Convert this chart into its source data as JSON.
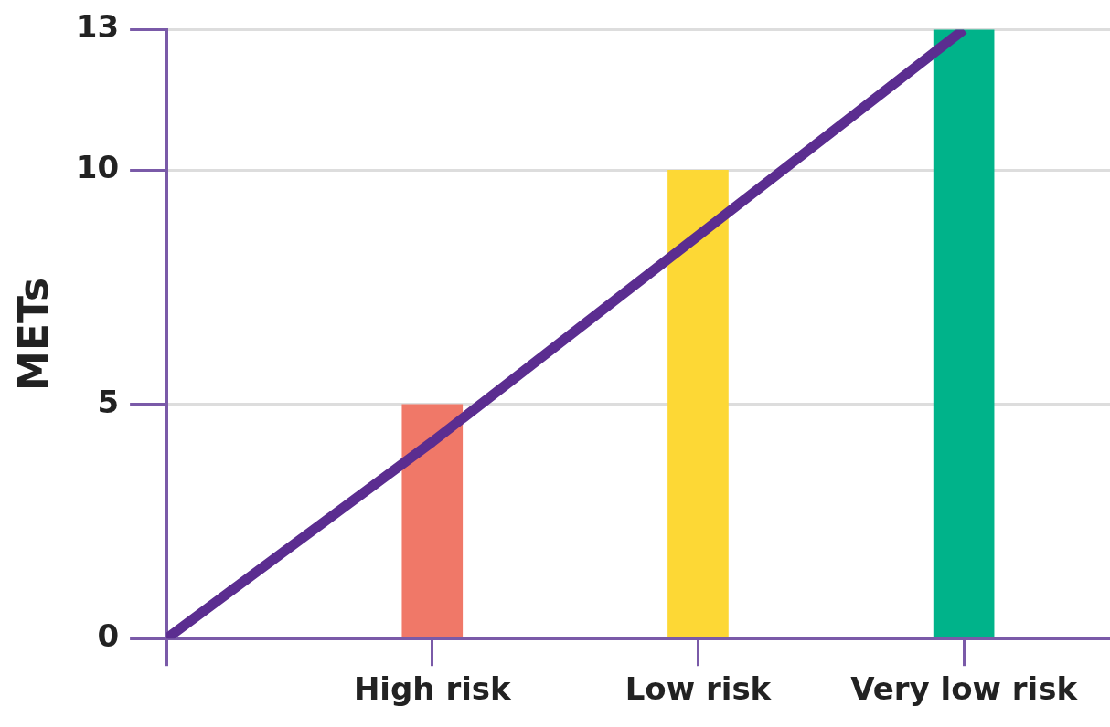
{
  "chart_data": {
    "type": "bar",
    "ylabel": "METs",
    "categories": [
      null,
      "High risk",
      "Low risk",
      "Very low risk"
    ],
    "series": [
      {
        "type": "line",
        "color": "#5b2d90",
        "values": [
          0,
          4.2,
          8.6,
          13
        ]
      },
      {
        "colors": [
          null,
          "#f07868",
          "#fdd835",
          "#00b38a"
        ],
        "values": [
          null,
          5,
          10,
          13
        ]
      }
    ],
    "ylim": [
      0,
      13
    ],
    "yticks": [
      0,
      5,
      10,
      13
    ],
    "grid": "y",
    "legend": false,
    "marker": "none",
    "line_style": "solid"
  }
}
